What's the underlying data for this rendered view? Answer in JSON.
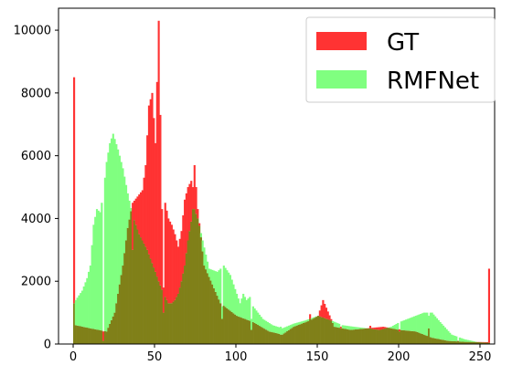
{
  "chart_data": {
    "type": "bar",
    "subtype": "overlaid-histogram",
    "title": "",
    "xlabel": "",
    "ylabel": "",
    "xlim": [
      -9,
      259
    ],
    "ylim": [
      0,
      10700
    ],
    "x_ticks": [
      0,
      50,
      100,
      150,
      200,
      250
    ],
    "y_ticks": [
      0,
      2000,
      4000,
      6000,
      8000,
      10000
    ],
    "x_tick_labels": [
      "0",
      "50",
      "100",
      "150",
      "200",
      "250"
    ],
    "y_tick_labels": [
      "0",
      "2000",
      "4000",
      "6000",
      "8000",
      "10000"
    ],
    "grid": false,
    "legend_position": "top-right",
    "bin_width": 1,
    "bin_range": [
      0,
      255
    ],
    "colors": {
      "gt": "#ff3333",
      "rmfnet": "#80ff80",
      "overlap": "#808019"
    },
    "series": [
      {
        "name": "GT",
        "color": "#ff3333",
        "anchors": [
          [
            0,
            8500
          ],
          [
            1,
            600
          ],
          [
            10,
            500
          ],
          [
            20,
            400
          ],
          [
            25,
            1000
          ],
          [
            30,
            2500
          ],
          [
            33,
            3700
          ],
          [
            36,
            4500
          ],
          [
            39,
            4700
          ],
          [
            42,
            4900
          ],
          [
            44,
            5700
          ],
          [
            46,
            7600
          ],
          [
            48,
            8000
          ],
          [
            50,
            6400
          ],
          [
            52,
            10300
          ],
          [
            54,
            4300
          ],
          [
            56,
            4500
          ],
          [
            58,
            4000
          ],
          [
            60,
            3800
          ],
          [
            62,
            3500
          ],
          [
            64,
            3100
          ],
          [
            66,
            3600
          ],
          [
            68,
            4600
          ],
          [
            70,
            5000
          ],
          [
            72,
            5200
          ],
          [
            74,
            5700
          ],
          [
            76,
            4300
          ],
          [
            80,
            2500
          ],
          [
            90,
            1300
          ],
          [
            100,
            900
          ],
          [
            110,
            700
          ],
          [
            120,
            400
          ],
          [
            128,
            300
          ],
          [
            135,
            550
          ],
          [
            145,
            750
          ],
          [
            150,
            900
          ],
          [
            153,
            1400
          ],
          [
            160,
            550
          ],
          [
            170,
            450
          ],
          [
            180,
            500
          ],
          [
            190,
            550
          ],
          [
            200,
            450
          ],
          [
            210,
            400
          ],
          [
            220,
            200
          ],
          [
            230,
            100
          ],
          [
            240,
            70
          ],
          [
            253,
            60
          ],
          [
            254,
            60
          ],
          [
            255,
            2400
          ]
        ],
        "spikes": [
          [
            18,
            400
          ],
          [
            36,
            4500
          ],
          [
            55,
            1800
          ],
          [
            73,
            5000
          ],
          [
            91,
            800
          ],
          [
            109,
            450
          ],
          [
            127,
            300
          ],
          [
            145,
            950
          ],
          [
            164,
            550
          ],
          [
            182,
            580
          ],
          [
            200,
            470
          ],
          [
            218,
            500
          ],
          [
            236,
            100
          ]
        ]
      },
      {
        "name": "RMFNet",
        "color": "#80ff80",
        "anchors": [
          [
            0,
            1300
          ],
          [
            1,
            1400
          ],
          [
            5,
            1700
          ],
          [
            8,
            2100
          ],
          [
            10,
            2500
          ],
          [
            12,
            3800
          ],
          [
            14,
            4300
          ],
          [
            16,
            4200
          ],
          [
            18,
            4800
          ],
          [
            20,
            5800
          ],
          [
            22,
            6400
          ],
          [
            24,
            6700
          ],
          [
            27,
            6200
          ],
          [
            30,
            5600
          ],
          [
            33,
            4800
          ],
          [
            36,
            4100
          ],
          [
            40,
            3500
          ],
          [
            45,
            3000
          ],
          [
            50,
            2300
          ],
          [
            52,
            2000
          ],
          [
            55,
            1600
          ],
          [
            58,
            1300
          ],
          [
            60,
            1300
          ],
          [
            62,
            1400
          ],
          [
            64,
            1600
          ],
          [
            66,
            2000
          ],
          [
            68,
            2500
          ],
          [
            70,
            3300
          ],
          [
            72,
            3900
          ],
          [
            74,
            4300
          ],
          [
            76,
            4000
          ],
          [
            79,
            3300
          ],
          [
            83,
            2400
          ],
          [
            88,
            2300
          ],
          [
            92,
            2500
          ],
          [
            96,
            2200
          ],
          [
            100,
            1600
          ],
          [
            102,
            1300
          ],
          [
            104,
            1600
          ],
          [
            106,
            1400
          ],
          [
            108,
            1500
          ],
          [
            110,
            1200
          ],
          [
            116,
            800
          ],
          [
            122,
            600
          ],
          [
            128,
            500
          ],
          [
            135,
            650
          ],
          [
            142,
            750
          ],
          [
            150,
            900
          ],
          [
            158,
            750
          ],
          [
            165,
            600
          ],
          [
            172,
            550
          ],
          [
            180,
            500
          ],
          [
            188,
            450
          ],
          [
            195,
            550
          ],
          [
            200,
            700
          ],
          [
            205,
            800
          ],
          [
            210,
            900
          ],
          [
            215,
            1000
          ],
          [
            220,
            1000
          ],
          [
            225,
            700
          ],
          [
            232,
            300
          ],
          [
            240,
            150
          ],
          [
            248,
            60
          ],
          [
            255,
            40
          ]
        ],
        "spikes": [
          [
            18,
            100
          ],
          [
            36,
            3000
          ],
          [
            55,
            1000
          ],
          [
            73,
            4300
          ],
          [
            91,
            1200
          ],
          [
            109,
            800
          ],
          [
            127,
            550
          ],
          [
            145,
            800
          ],
          [
            164,
            500
          ],
          [
            182,
            500
          ],
          [
            200,
            400
          ],
          [
            218,
            900
          ],
          [
            236,
            100
          ]
        ]
      }
    ]
  },
  "legend": {
    "items": [
      {
        "label": "GT",
        "color": "#ff3333"
      },
      {
        "label": "RMFNet",
        "color": "#80ff80"
      }
    ]
  }
}
